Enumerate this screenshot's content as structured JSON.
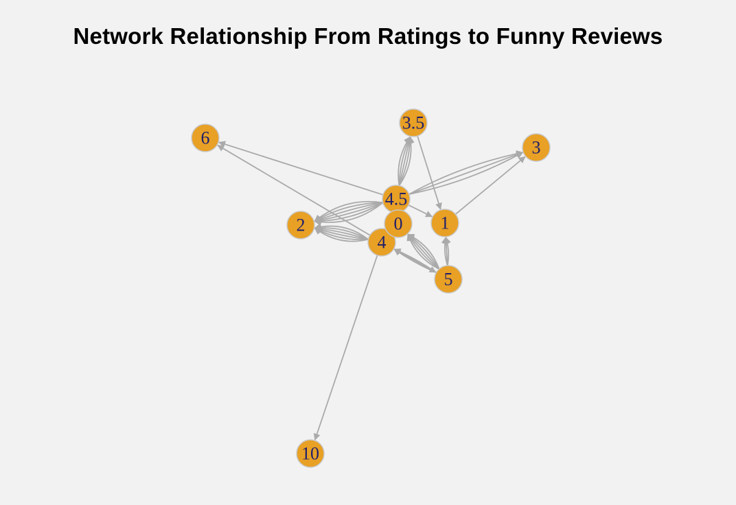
{
  "title": "Network Relationship From Ratings to Funny Reviews",
  "colors": {
    "background": "#f2f2f2",
    "node_fill": "#e8a025",
    "node_stroke": "#c8c8c8",
    "node_label": "#1f1f6b",
    "edge": "#aaaaaa"
  },
  "network": {
    "directed": true,
    "nodes": [
      {
        "id": "6",
        "label": "6"
      },
      {
        "id": "3.5",
        "label": "3.5"
      },
      {
        "id": "3",
        "label": "3"
      },
      {
        "id": "2",
        "label": "2"
      },
      {
        "id": "5",
        "label": "5"
      },
      {
        "id": "10",
        "label": "10"
      },
      {
        "id": "4",
        "label": "4"
      },
      {
        "id": "1",
        "label": "1"
      },
      {
        "id": "4.5",
        "label": "4.5"
      },
      {
        "id": "0",
        "label": "0"
      }
    ],
    "edges": [
      {
        "source": "4.5",
        "target": "6",
        "count": 1
      },
      {
        "source": "4",
        "target": "6",
        "count": 1
      },
      {
        "source": "4.5",
        "target": "3.5",
        "count": 5
      },
      {
        "source": "3.5",
        "target": "1",
        "count": 1
      },
      {
        "source": "4.5",
        "target": "3",
        "count": 3
      },
      {
        "source": "1",
        "target": "3",
        "count": 1
      },
      {
        "source": "4.5",
        "target": "2",
        "count": 6
      },
      {
        "source": "4",
        "target": "2",
        "count": 6
      },
      {
        "source": "4",
        "target": "10",
        "count": 1
      },
      {
        "source": "5",
        "target": "4",
        "count": 2
      },
      {
        "source": "5",
        "target": "1",
        "count": 3
      },
      {
        "source": "5",
        "target": "0",
        "count": 5
      },
      {
        "source": "4.5",
        "target": "1",
        "count": 1
      },
      {
        "source": "4.5",
        "target": "0",
        "count": 1
      },
      {
        "source": "4",
        "target": "5",
        "count": 1
      }
    ]
  }
}
